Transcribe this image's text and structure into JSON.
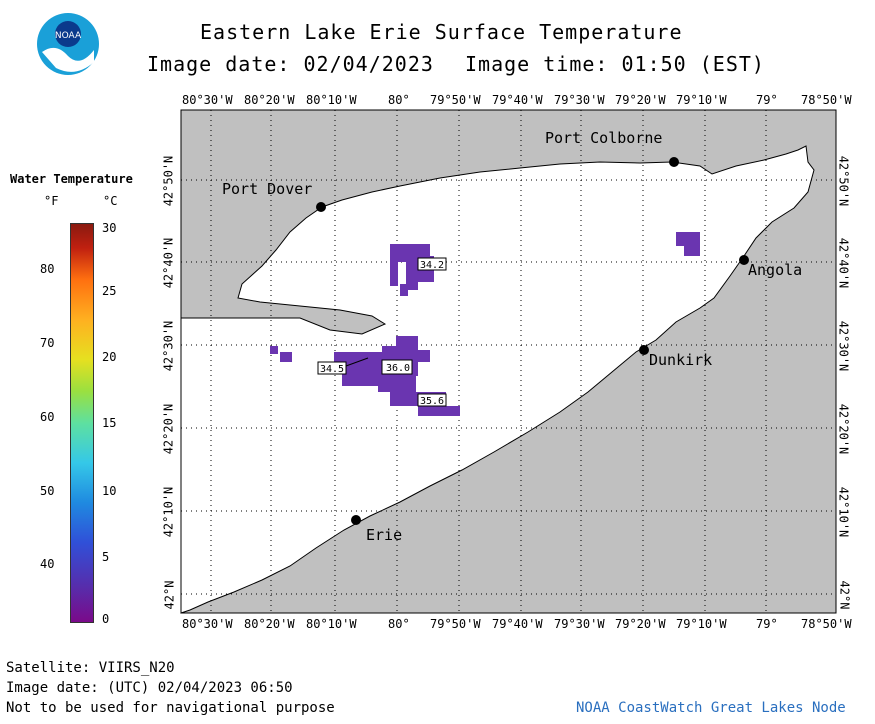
{
  "header": {
    "title": "Eastern Lake Erie Surface Temperature",
    "image_date": "Image date: 02/04/2023",
    "image_time": "Image time: 01:50 (EST)"
  },
  "logo": {
    "text": "NOAA"
  },
  "legend": {
    "title": "Water Temperature",
    "unit_f": "°F",
    "unit_c": "°C",
    "f_ticks": [
      "80",
      "70",
      "60",
      "50",
      "40"
    ],
    "c_ticks": [
      "30",
      "25",
      "20",
      "15",
      "10",
      "5",
      "0"
    ]
  },
  "axes": {
    "lon_labels": [
      "80°30'W",
      "80°20'W",
      "80°10'W",
      "80°",
      "79°50'W",
      "79°40'W",
      "79°30'W",
      "79°20'W",
      "79°10'W",
      "79°",
      "78°50'W"
    ],
    "lat_labels": [
      "42°50'N",
      "42°40'N",
      "42°30'N",
      "42°20'N",
      "42°10'N",
      "42°N"
    ]
  },
  "places": {
    "port_colborne": "Port Colborne",
    "port_dover": "Port Dover",
    "angola": "Angola",
    "dunkirk": "Dunkirk",
    "erie": "Erie"
  },
  "readings": {
    "r1": "34.2",
    "r2": "34.5",
    "r3": "36.0",
    "r4": "35.6"
  },
  "footer": {
    "satellite": "Satellite: VIIRS_N20",
    "utc_date": "Image date: (UTC) 02/04/2023  06:50",
    "disclaimer": "Not to be used for navigational purpose",
    "credit": "NOAA CoastWatch Great Lakes Node"
  },
  "colors": {
    "land": "#c0c0c0",
    "water": "#ffffff",
    "cold_patch": "#6a35b0"
  }
}
